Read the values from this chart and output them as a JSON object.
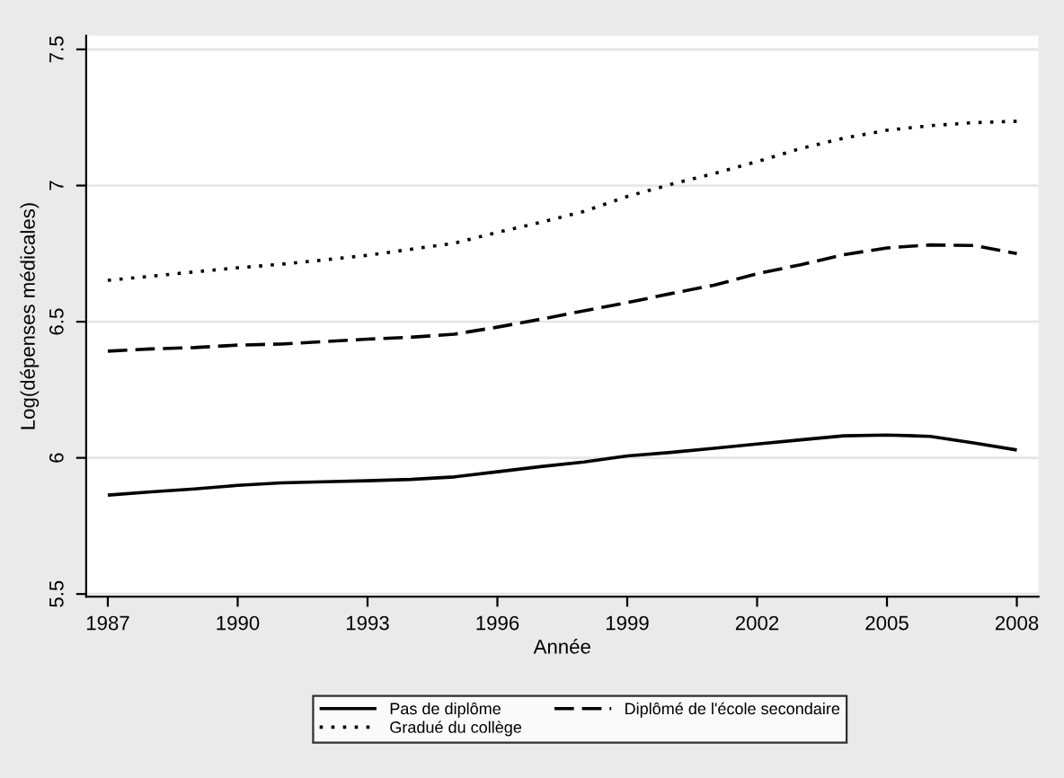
{
  "chart_data": {
    "type": "line",
    "xlabel": "Année",
    "ylabel": "Log(dépenses médicales)",
    "x": [
      1987,
      1988,
      1989,
      1990,
      1991,
      1992,
      1993,
      1994,
      1995,
      1996,
      1997,
      1998,
      1999,
      2000,
      2001,
      2002,
      2003,
      2004,
      2005,
      2006,
      2007,
      2008
    ],
    "series": [
      {
        "name": "Pas de diplôme",
        "color": "#000000",
        "line_style": "solid",
        "values": [
          5.863,
          5.875,
          5.886,
          5.899,
          5.908,
          5.912,
          5.916,
          5.921,
          5.93,
          5.949,
          5.968,
          5.985,
          6.007,
          6.02,
          6.035,
          6.051,
          6.066,
          6.081,
          6.084,
          6.079,
          6.055,
          6.029
        ]
      },
      {
        "name": "Diplômé de l'école secondaire",
        "color": "#000000",
        "line_style": "dashed",
        "values": [
          6.392,
          6.4,
          6.405,
          6.414,
          6.418,
          6.427,
          6.436,
          6.443,
          6.454,
          6.48,
          6.509,
          6.54,
          6.57,
          6.603,
          6.634,
          6.676,
          6.709,
          6.746,
          6.771,
          6.782,
          6.78,
          6.75
        ]
      },
      {
        "name": "Gradué du collège",
        "color": "#000000",
        "line_style": "dotted",
        "values": [
          6.652,
          6.667,
          6.683,
          6.698,
          6.711,
          6.727,
          6.744,
          6.766,
          6.788,
          6.828,
          6.865,
          6.905,
          6.96,
          7.004,
          7.044,
          7.088,
          7.136,
          7.174,
          7.203,
          7.22,
          7.231,
          7.236
        ]
      }
    ],
    "xlim": [
      1986.5,
      2008.5
    ],
    "xticks": [
      1987,
      1990,
      1993,
      1996,
      1999,
      2002,
      2005,
      2008
    ],
    "ylim": [
      5.49,
      7.55
    ],
    "yticks": [
      5.5,
      6,
      6.5,
      7,
      7.5
    ],
    "grid": "y",
    "legend": "bottom",
    "marker": "none"
  }
}
